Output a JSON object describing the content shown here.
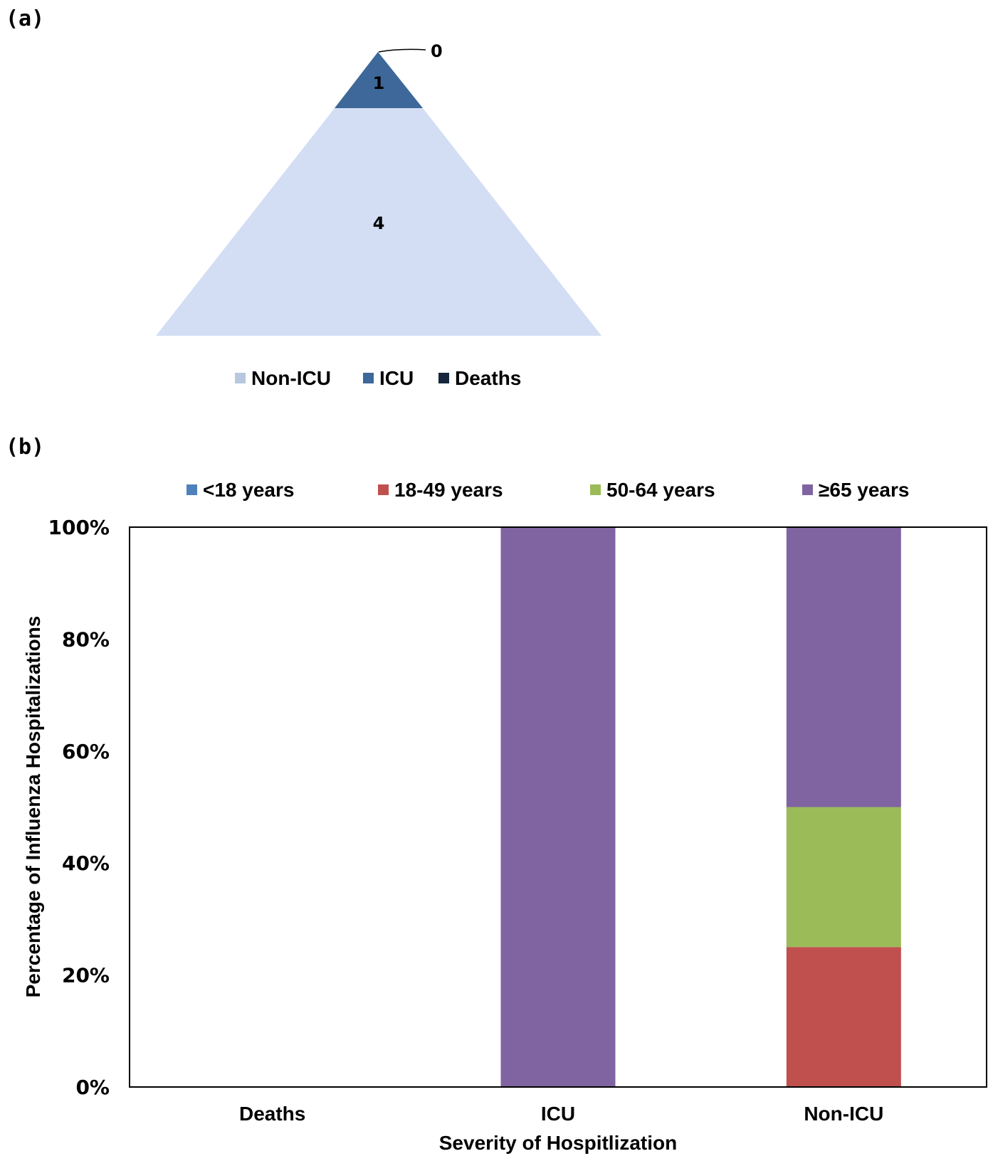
{
  "panel_a_label": "(a)",
  "panel_b_label": "(b)",
  "chart_data": [
    {
      "type": "pyramid",
      "levels": [
        {
          "name": "Deaths",
          "value": 0,
          "color": "#17263d"
        },
        {
          "name": "ICU",
          "value": 1,
          "color": "#3d6899"
        },
        {
          "name": "Non-ICU",
          "value": 4,
          "color": "#d3def5"
        }
      ],
      "legend": {
        "placement": "bottom",
        "items": [
          {
            "name": "Non-ICU",
            "color": "#b7c8de"
          },
          {
            "name": "ICU",
            "color": "#3d6899"
          },
          {
            "name": "Deaths",
            "color": "#17263d"
          }
        ]
      }
    },
    {
      "type": "bar",
      "stacked": true,
      "categories": [
        "Deaths",
        "ICU",
        "Non-ICU"
      ],
      "series": [
        {
          "name": "<18 years",
          "color": "#4f81bd",
          "values": [
            0,
            0,
            0
          ]
        },
        {
          "name": "18-49 years",
          "color": "#c0504d",
          "values": [
            0,
            0,
            25
          ]
        },
        {
          "name": "50-64 years",
          "color": "#9bbb59",
          "values": [
            0,
            0,
            25
          ]
        },
        {
          "name": "≥65 years",
          "color": "#8064a2",
          "values": [
            0,
            100,
            50
          ]
        }
      ],
      "yticks": [
        "0%",
        "20%",
        "40%",
        "60%",
        "80%",
        "100%"
      ],
      "ylim": [
        0,
        100
      ],
      "xlabel": "Severity of Hospitlization",
      "ylabel": "Percentage of Influenza Hospitalizations",
      "legend_placement": "top"
    }
  ]
}
